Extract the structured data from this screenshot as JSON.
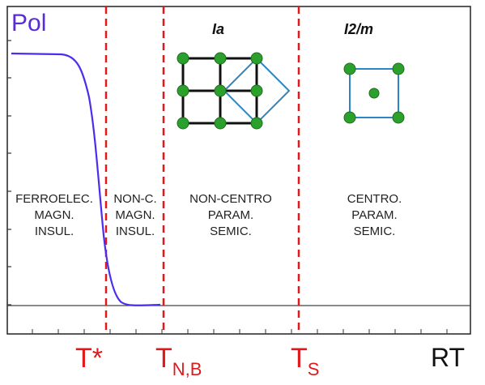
{
  "y_label": "Pol",
  "phase_groups": {
    "ia": "Ia",
    "i2m": "I2/m"
  },
  "regions": [
    {
      "lines": [
        "FERROELEC.",
        "MAGN.",
        "INSUL."
      ]
    },
    {
      "lines": [
        "NON-C.",
        "MAGN.",
        "INSUL."
      ]
    },
    {
      "lines": [
        "NON-CENTRO",
        "PARAM.",
        "SEMIC."
      ]
    },
    {
      "lines": [
        "CENTRO.",
        "PARAM.",
        "SEMIC."
      ]
    }
  ],
  "transitions": [
    {
      "main": "T*",
      "sub": ""
    },
    {
      "main": "T",
      "sub": "N,B"
    },
    {
      "main": "T",
      "sub": "S"
    }
  ],
  "x_end_label": "RT",
  "colors": {
    "curve": "#4a2ef0",
    "dashed": "#e0191c",
    "atom": "#2ca02c",
    "grid": "#111111",
    "cell": "#2d86c4"
  }
}
